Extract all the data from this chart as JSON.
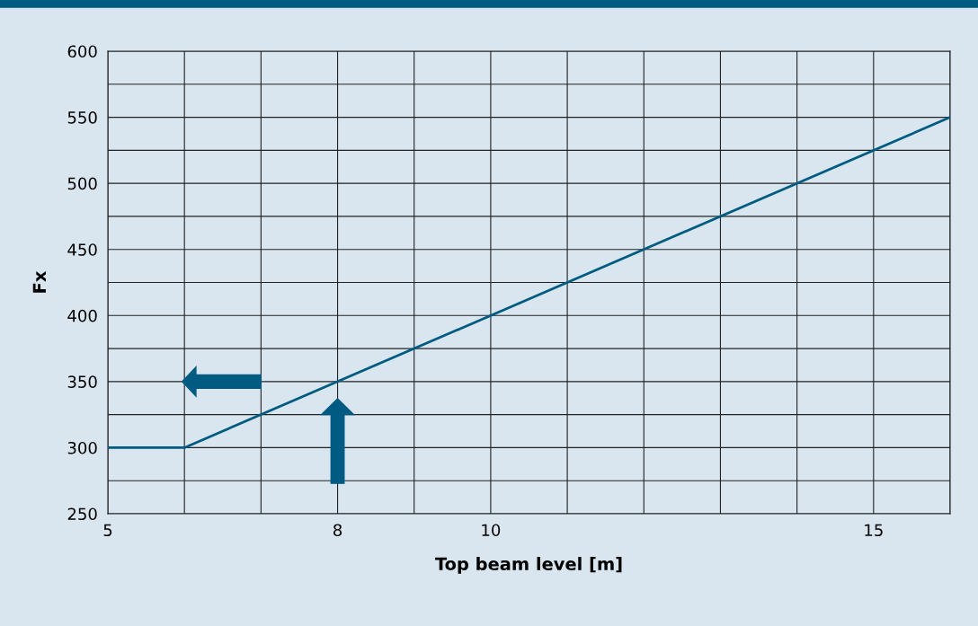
{
  "chart_data": {
    "type": "line",
    "xlabel": "Top beam level [m]",
    "ylabel": "Fx",
    "x": [
      5,
      6,
      16
    ],
    "series": [
      {
        "color": "#005b82",
        "values": [
          300,
          300,
          550
        ]
      }
    ],
    "xlim": [
      5,
      16
    ],
    "xticks": [
      5,
      {
        "value": 6,
        "label": null
      },
      {
        "value": 7,
        "label": null
      },
      8,
      {
        "value": 9,
        "label": null
      },
      10,
      {
        "value": 11,
        "label": null
      },
      {
        "value": 12,
        "label": null
      },
      {
        "value": 13,
        "label": null
      },
      {
        "value": 14,
        "label": null
      },
      15,
      {
        "value": 16,
        "label": null
      }
    ],
    "ylim": [
      250,
      600
    ],
    "yticks": [
      250,
      {
        "value": 275,
        "label": null
      },
      300,
      {
        "value": 325,
        "label": null
      },
      350,
      {
        "value": 375,
        "label": null
      },
      400,
      {
        "value": 425,
        "label": null
      },
      450,
      {
        "value": 475,
        "label": null
      },
      500,
      {
        "value": 525,
        "label": null
      },
      550,
      {
        "value": 575,
        "label": null
      },
      600
    ],
    "grid": true,
    "marker": "none",
    "line_style": "solid",
    "legend": false
  }
}
